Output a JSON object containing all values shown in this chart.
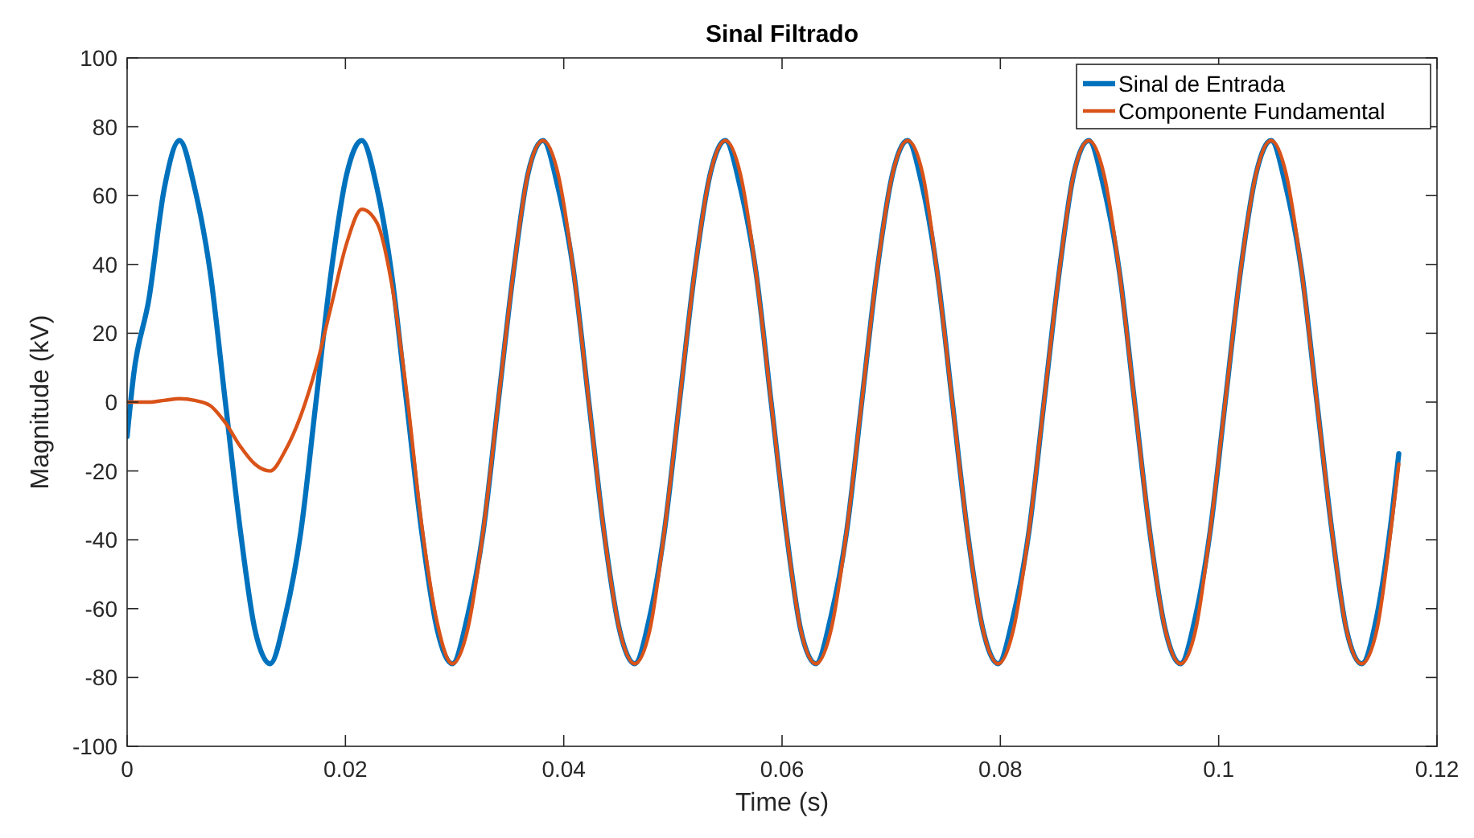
{
  "chart_data": {
    "type": "line",
    "title": "Sinal Filtrado",
    "xlabel": "Time (s)",
    "ylabel": "Magnitude (kV)",
    "x": [
      0,
      0.0006,
      0.002,
      0.0034,
      0.0048,
      0.0062,
      0.0076,
      0.009,
      0.0104,
      0.0117,
      0.0131,
      0.0145,
      0.0159,
      0.0173,
      0.0187,
      0.0201,
      0.0215,
      0.0229,
      0.0242,
      0.0256,
      0.027,
      0.0284,
      0.0298,
      0.0312,
      0.0326,
      0.034,
      0.0354,
      0.0367,
      0.0381,
      0.0395,
      0.0409,
      0.0423,
      0.0437,
      0.0451,
      0.0465,
      0.0479,
      0.0492,
      0.0506,
      0.052,
      0.0534,
      0.0548,
      0.0562,
      0.0576,
      0.059,
      0.0604,
      0.0617,
      0.0631,
      0.0645,
      0.0659,
      0.0673,
      0.0687,
      0.0701,
      0.0715,
      0.0729,
      0.0742,
      0.0756,
      0.077,
      0.0784,
      0.0798,
      0.0812,
      0.0826,
      0.084,
      0.0854,
      0.0867,
      0.0881,
      0.0895,
      0.0909,
      0.0923,
      0.0937,
      0.0951,
      0.0965,
      0.0979,
      0.0992,
      0.1006,
      0.102,
      0.1034,
      0.1048,
      0.1062,
      0.1076,
      0.109,
      0.1104,
      0.1117,
      0.1131,
      0.1145,
      0.1159,
      0.1165
    ],
    "series": [
      {
        "name": "Sinal de Entrada",
        "color": "#0072bd",
        "values": [
          -10,
          8,
          30,
          62,
          76,
          62,
          38,
          0,
          -38,
          -66,
          -76,
          -62,
          -38,
          0,
          38,
          66,
          76,
          62,
          38,
          0,
          -38,
          -66,
          -76,
          -62,
          -38,
          0,
          38,
          66,
          76,
          62,
          38,
          0,
          -38,
          -66,
          -76,
          -62,
          -38,
          0,
          38,
          66,
          76,
          62,
          38,
          0,
          -38,
          -66,
          -76,
          -62,
          -38,
          0,
          38,
          66,
          76,
          62,
          38,
          0,
          -38,
          -66,
          -76,
          -62,
          -38,
          0,
          38,
          66,
          76,
          62,
          38,
          0,
          -38,
          -66,
          -76,
          -62,
          -38,
          0,
          38,
          66,
          76,
          62,
          38,
          0,
          -38,
          -66,
          -76,
          -62,
          -32,
          -15
        ]
      },
      {
        "name": "Componente Fundamental",
        "color": "#d95319",
        "values": [
          0,
          0,
          0,
          0.5,
          1,
          0.5,
          -1,
          -6,
          -13,
          -18,
          -20,
          -14,
          -4,
          10,
          28,
          46,
          56,
          52,
          35,
          3,
          -36,
          -64,
          -76,
          -66,
          -38,
          0,
          38,
          66,
          76,
          66,
          38,
          0,
          -38,
          -66,
          -76,
          -66,
          -38,
          0,
          38,
          66,
          76,
          66,
          38,
          0,
          -38,
          -66,
          -76,
          -66,
          -38,
          0,
          38,
          66,
          76,
          66,
          38,
          0,
          -38,
          -66,
          -76,
          -66,
          -38,
          0,
          38,
          66,
          76,
          66,
          38,
          0,
          -38,
          -66,
          -76,
          -66,
          -38,
          0,
          38,
          66,
          76,
          66,
          38,
          0,
          -38,
          -66,
          -76,
          -66,
          -34,
          -18
        ]
      }
    ],
    "xlim": [
      0,
      0.12
    ],
    "xticks": [
      0,
      0.02,
      0.04,
      0.06,
      0.08,
      0.1,
      0.12
    ],
    "ylim": [
      -100,
      100
    ],
    "yticks": [
      -100,
      -80,
      -60,
      -40,
      -20,
      0,
      20,
      40,
      60,
      80,
      100
    ],
    "legend": "top right",
    "grid": false
  }
}
